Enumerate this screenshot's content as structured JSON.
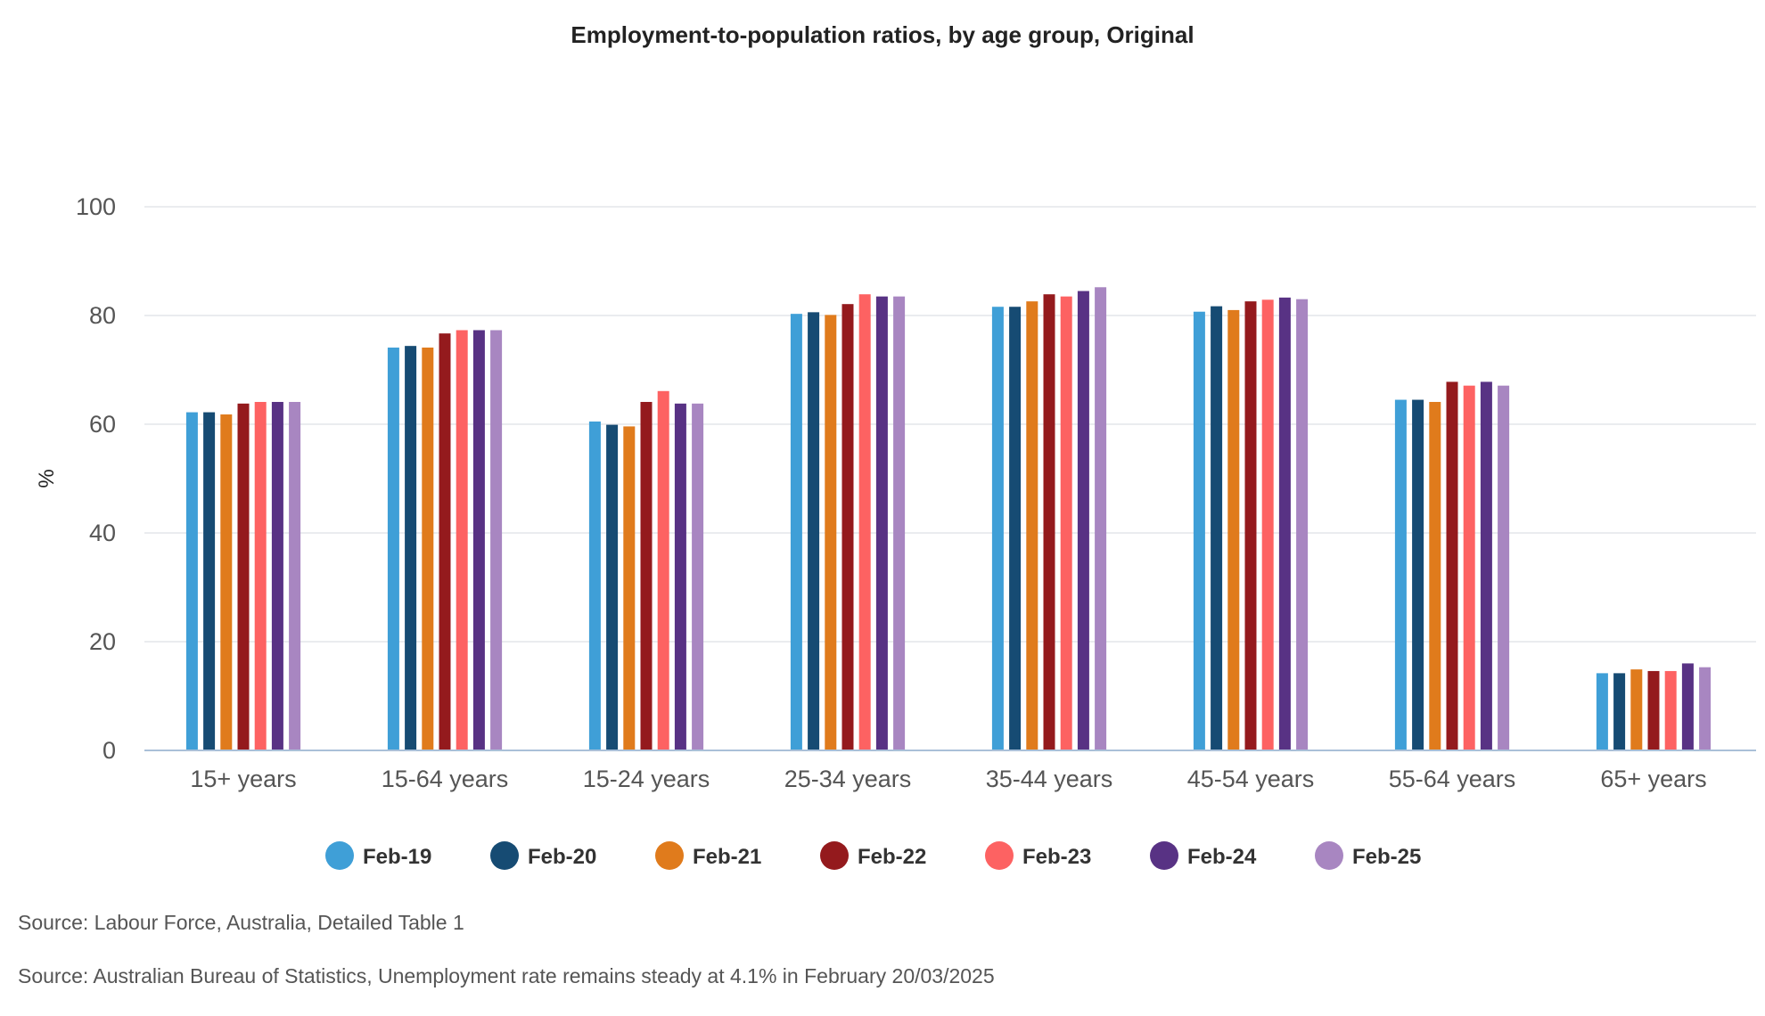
{
  "chart_data": {
    "type": "bar",
    "title": "Employment-to-population ratios, by age group, Original",
    "ylabel": "%",
    "xlabel": "",
    "ylim": [
      0,
      100
    ],
    "yticks": [
      0,
      20,
      40,
      60,
      80,
      100
    ],
    "grid": true,
    "legend_position": "bottom",
    "categories": [
      "15+ years",
      "15-64 years",
      "15-24 years",
      "25-34 years",
      "35-44 years",
      "45-54 years",
      "55-64 years",
      "65+ years"
    ],
    "series": [
      {
        "name": "Feb-19",
        "color": "#3f9fd7",
        "values": [
          62.2,
          74.1,
          60.5,
          80.3,
          81.6,
          80.7,
          64.5,
          14.2
        ]
      },
      {
        "name": "Feb-20",
        "color": "#164b73",
        "values": [
          62.2,
          74.4,
          59.9,
          80.6,
          81.6,
          81.7,
          64.5,
          14.2
        ]
      },
      {
        "name": "Feb-21",
        "color": "#e07b1c",
        "values": [
          61.8,
          74.1,
          59.6,
          80.1,
          82.6,
          81.0,
          64.1,
          14.9
        ]
      },
      {
        "name": "Feb-22",
        "color": "#941a1d",
        "values": [
          63.8,
          76.7,
          64.1,
          82.1,
          83.9,
          82.6,
          67.8,
          14.6
        ]
      },
      {
        "name": "Feb-23",
        "color": "#fd6262",
        "values": [
          64.1,
          77.3,
          66.1,
          83.9,
          83.5,
          82.9,
          67.1,
          14.6
        ]
      },
      {
        "name": "Feb-24",
        "color": "#583284",
        "values": [
          64.1,
          77.3,
          63.8,
          83.5,
          84.5,
          83.3,
          67.8,
          16.0
        ]
      },
      {
        "name": "Feb-25",
        "color": "#a886c1",
        "values": [
          64.1,
          77.3,
          63.8,
          83.5,
          85.2,
          83.0,
          67.1,
          15.3
        ]
      }
    ]
  },
  "sources": [
    "Source: Labour Force, Australia, Detailed Table 1",
    "Source: Australian Bureau of Statistics, Unemployment rate remains steady at 4.1% in February 20/03/2025"
  ]
}
